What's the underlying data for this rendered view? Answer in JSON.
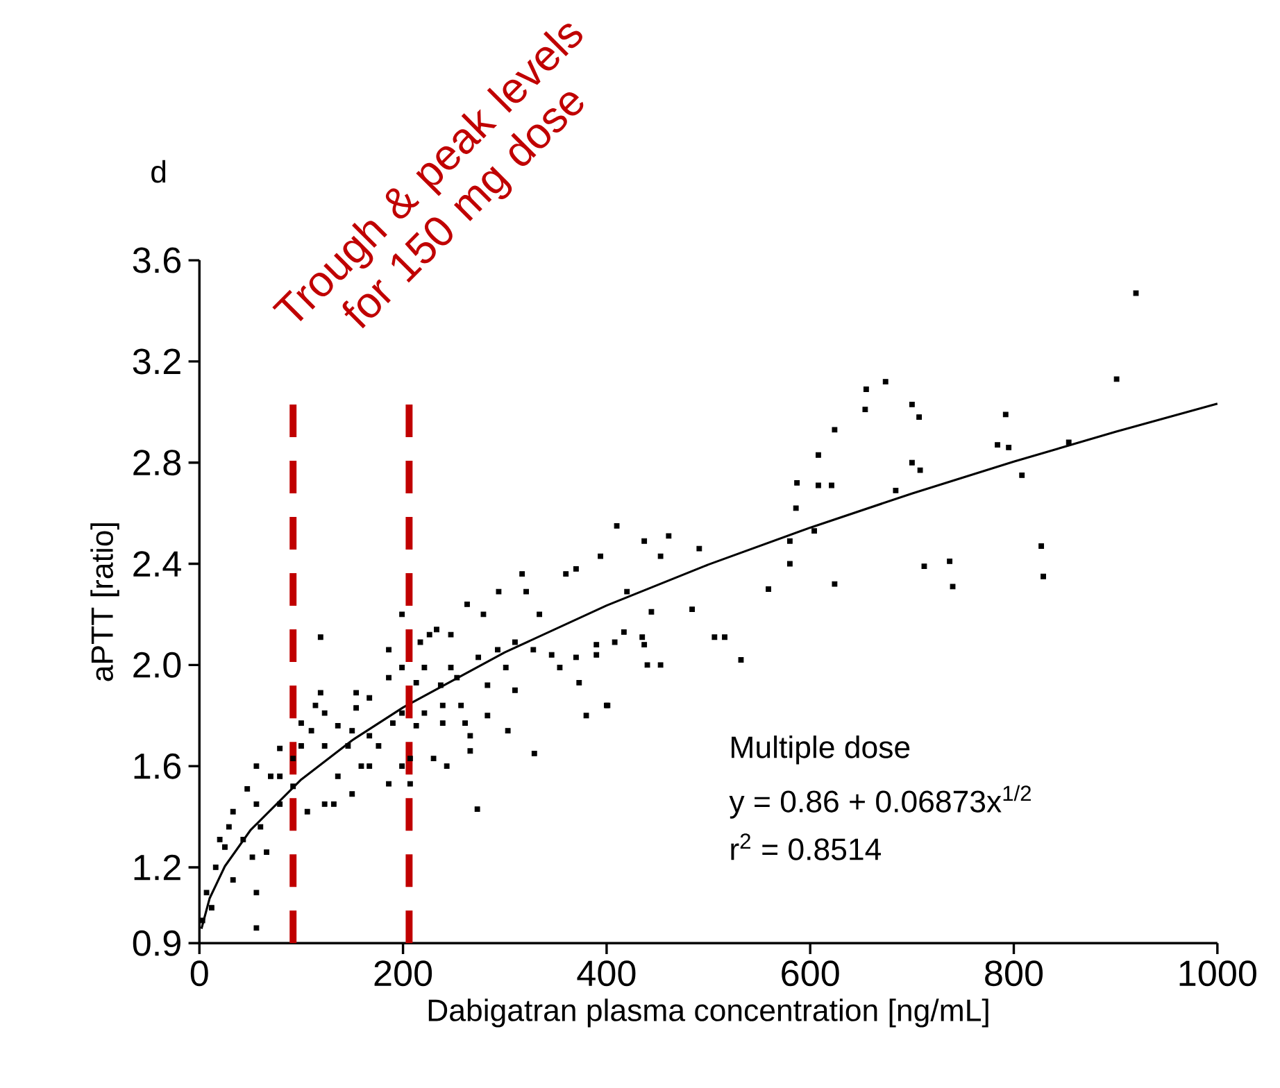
{
  "chart_data": {
    "type": "scatter",
    "xlabel": "Dabigatran plasma concentration [ng/mL]",
    "ylabel": "aPTT [ratio]",
    "xlim": [
      0,
      1000
    ],
    "ylim": [
      0.9,
      3.6
    ],
    "xticks": [
      0,
      200,
      400,
      600,
      800,
      1000
    ],
    "yticks": [
      0.9,
      1.2,
      1.6,
      {
        "value": 2.0,
        "label": "2.0"
      },
      2.4,
      2.8,
      3.2,
      3.6
    ],
    "ref_lines": [
      {
        "axis": "x",
        "value": 92,
        "color": "#c00000",
        "line_style": "dashed"
      },
      {
        "axis": "x",
        "value": 206,
        "color": "#c00000",
        "line_style": "dashed"
      }
    ],
    "annotations": [
      "Trough & peak levels for 150 mg dose",
      "d",
      "Multiple dose",
      "y  = 0.86 + 0.06873x$^{1/2}$",
      "r$^{2}$ = 0.8514"
    ],
    "series": [
      {
        "color": "#000000",
        "marker": "square",
        "x": [
          655,
          674,
          654,
          700,
          707,
          624,
          608,
          587,
          608,
          621,
          586,
          580,
          604,
          580,
          559,
          624,
          700,
          708,
          684,
          792,
          784,
          795,
          808,
          827,
          829,
          712,
          737,
          740,
          901,
          854,
          920,
          532,
          506,
          516,
          484,
          491,
          461,
          437,
          410,
          453,
          444,
          437,
          453,
          401,
          380,
          420,
          394,
          370,
          390,
          119,
          119,
          273,
          56,
          56,
          329,
          400,
          263,
          294,
          317,
          279,
          226,
          247,
          233,
          301,
          321,
          334,
          360,
          370,
          257,
          283,
          303,
          243,
          230,
          199,
          207,
          186,
          207,
          266,
          266,
          237,
          213,
          199,
          199,
          186,
          167,
          154,
          159,
          167,
          136,
          150,
          123,
          106,
          132,
          92,
          79,
          60,
          66,
          52,
          33,
          16,
          7,
          3,
          12,
          25,
          20,
          43,
          33,
          56,
          47,
          56,
          79,
          100,
          110,
          123,
          136,
          150,
          167,
          176,
          146,
          123,
          114,
          100,
          92,
          70,
          29,
          190,
          213,
          221,
          239,
          253,
          221,
          247,
          274,
          293,
          310,
          328,
          346,
          354,
          373,
          390,
          408,
          417,
          435,
          440,
          310,
          239,
          283,
          261,
          199,
          217,
          186,
          154,
          79
        ],
        "values": [
          3.09,
          3.12,
          3.01,
          3.03,
          2.98,
          2.93,
          2.83,
          2.72,
          2.71,
          2.71,
          2.62,
          2.49,
          2.53,
          2.4,
          2.3,
          2.32,
          2.8,
          2.77,
          2.69,
          2.99,
          2.87,
          2.86,
          2.75,
          2.47,
          2.35,
          2.39,
          2.41,
          2.31,
          3.13,
          2.88,
          3.47,
          2.02,
          2.11,
          2.11,
          2.22,
          2.46,
          2.51,
          2.49,
          2.55,
          2.43,
          2.21,
          2.08,
          2.0,
          1.84,
          1.8,
          2.29,
          2.43,
          2.03,
          2.08,
          2.11,
          1.89,
          1.43,
          0.96,
          1.1,
          1.65,
          1.84,
          2.24,
          2.29,
          2.36,
          2.2,
          2.12,
          2.12,
          2.14,
          1.99,
          2.29,
          2.2,
          2.36,
          2.38,
          1.84,
          1.8,
          1.74,
          1.6,
          1.63,
          1.6,
          1.53,
          1.53,
          1.63,
          1.72,
          1.66,
          1.92,
          1.93,
          1.99,
          1.81,
          1.95,
          1.87,
          1.89,
          1.6,
          1.6,
          1.56,
          1.49,
          1.45,
          1.42,
          1.45,
          1.52,
          1.45,
          1.36,
          1.26,
          1.24,
          1.15,
          1.2,
          1.1,
          0.99,
          1.04,
          1.28,
          1.31,
          1.31,
          1.42,
          1.45,
          1.51,
          1.6,
          1.56,
          1.68,
          1.74,
          1.68,
          1.76,
          1.74,
          1.72,
          1.68,
          1.68,
          1.81,
          1.84,
          1.77,
          1.63,
          1.56,
          1.36,
          1.77,
          1.76,
          1.81,
          1.77,
          1.95,
          1.99,
          1.99,
          2.03,
          2.06,
          2.09,
          2.06,
          2.04,
          1.99,
          1.93,
          2.04,
          2.09,
          2.13,
          2.11,
          2.0,
          1.9,
          1.84,
          1.92,
          1.77,
          2.2,
          2.09,
          2.06,
          1.83,
          1.67
        ]
      },
      {
        "type": "line",
        "color": "#000000",
        "line_style": "solid",
        "x": [
          2,
          10,
          25,
          50,
          100,
          150,
          200,
          300,
          400,
          500,
          600,
          700,
          800,
          900,
          1000
        ],
        "values": [
          0.957,
          1.077,
          1.204,
          1.346,
          1.547,
          1.702,
          1.832,
          2.05,
          2.235,
          2.397,
          2.543,
          2.678,
          2.804,
          2.922,
          3.033
        ]
      }
    ]
  }
}
